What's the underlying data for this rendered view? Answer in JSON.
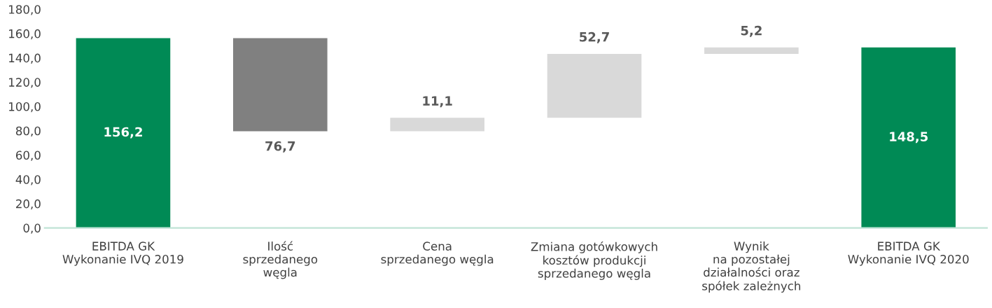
{
  "chart_data": {
    "type": "bar",
    "categories": [
      "EBITDA GK\nWykonanie IVQ 2019",
      "Ilość\nsprzedanego\nwęgla",
      "Cena\nsprzedanego węgla",
      "Zmiana gotówkowych\nkosztów produkcji\nsprzedanego węgla",
      "Wynik\nna pozostałej\ndziałalności oraz\nspółek zależnych",
      "EBITDA GK\nWykonanie IVQ 2020"
    ],
    "values": [
      156.2,
      -76.7,
      11.1,
      52.7,
      5.2,
      148.5
    ],
    "base": [
      0,
      156.2,
      79.5,
      90.6,
      143.3,
      0
    ],
    "colors": [
      "#008a55",
      "#808080",
      "#d9d9d9",
      "#d9d9d9",
      "#d9d9d9",
      "#008a55"
    ],
    "value_labels": [
      "156,2",
      "76,7",
      "11,1",
      "52,7",
      "5,2",
      "148,5"
    ],
    "ylim": [
      0,
      180
    ],
    "yticks": [
      {
        "value": 0,
        "label": "0,0"
      },
      {
        "value": 20,
        "label": "20,0"
      },
      {
        "value": 40,
        "label": "40,0"
      },
      {
        "value": 60,
        "label": "60,0"
      },
      {
        "value": 80,
        "label": "80,0"
      },
      {
        "value": 100,
        "label": "100,0"
      },
      {
        "value": 120,
        "label": "120,0"
      },
      {
        "value": 140,
        "label": "140,0"
      },
      {
        "value": 160,
        "label": "160,0"
      },
      {
        "value": 180,
        "label": "180,0"
      }
    ],
    "grid": false,
    "legend": false
  }
}
